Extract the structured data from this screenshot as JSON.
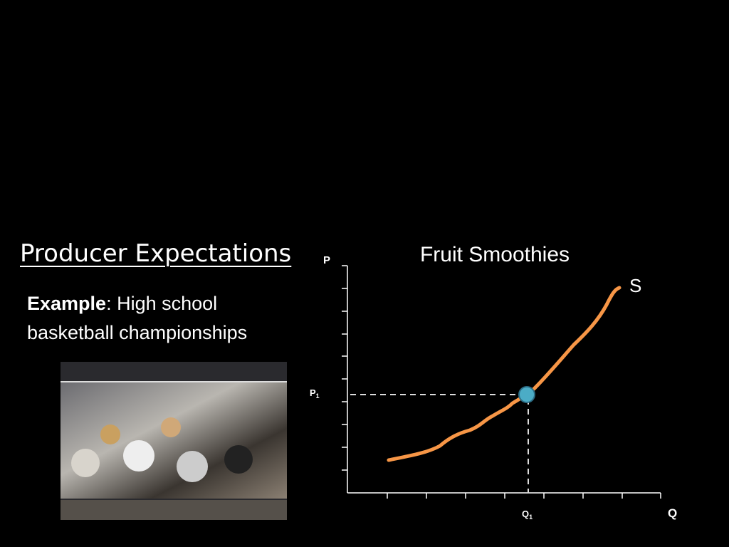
{
  "slide": {
    "title": "Producer Expectations",
    "example": {
      "label": "Example",
      "text": ": High school basketball championships"
    },
    "graph": {
      "title": "Fruit Smoothies",
      "y_axis": "P",
      "x_axis": "Q",
      "curve_label": "S",
      "price_label": {
        "base": "P",
        "sub": "1"
      },
      "quantity_label": {
        "base": "Q",
        "sub": "1"
      }
    }
  }
}
